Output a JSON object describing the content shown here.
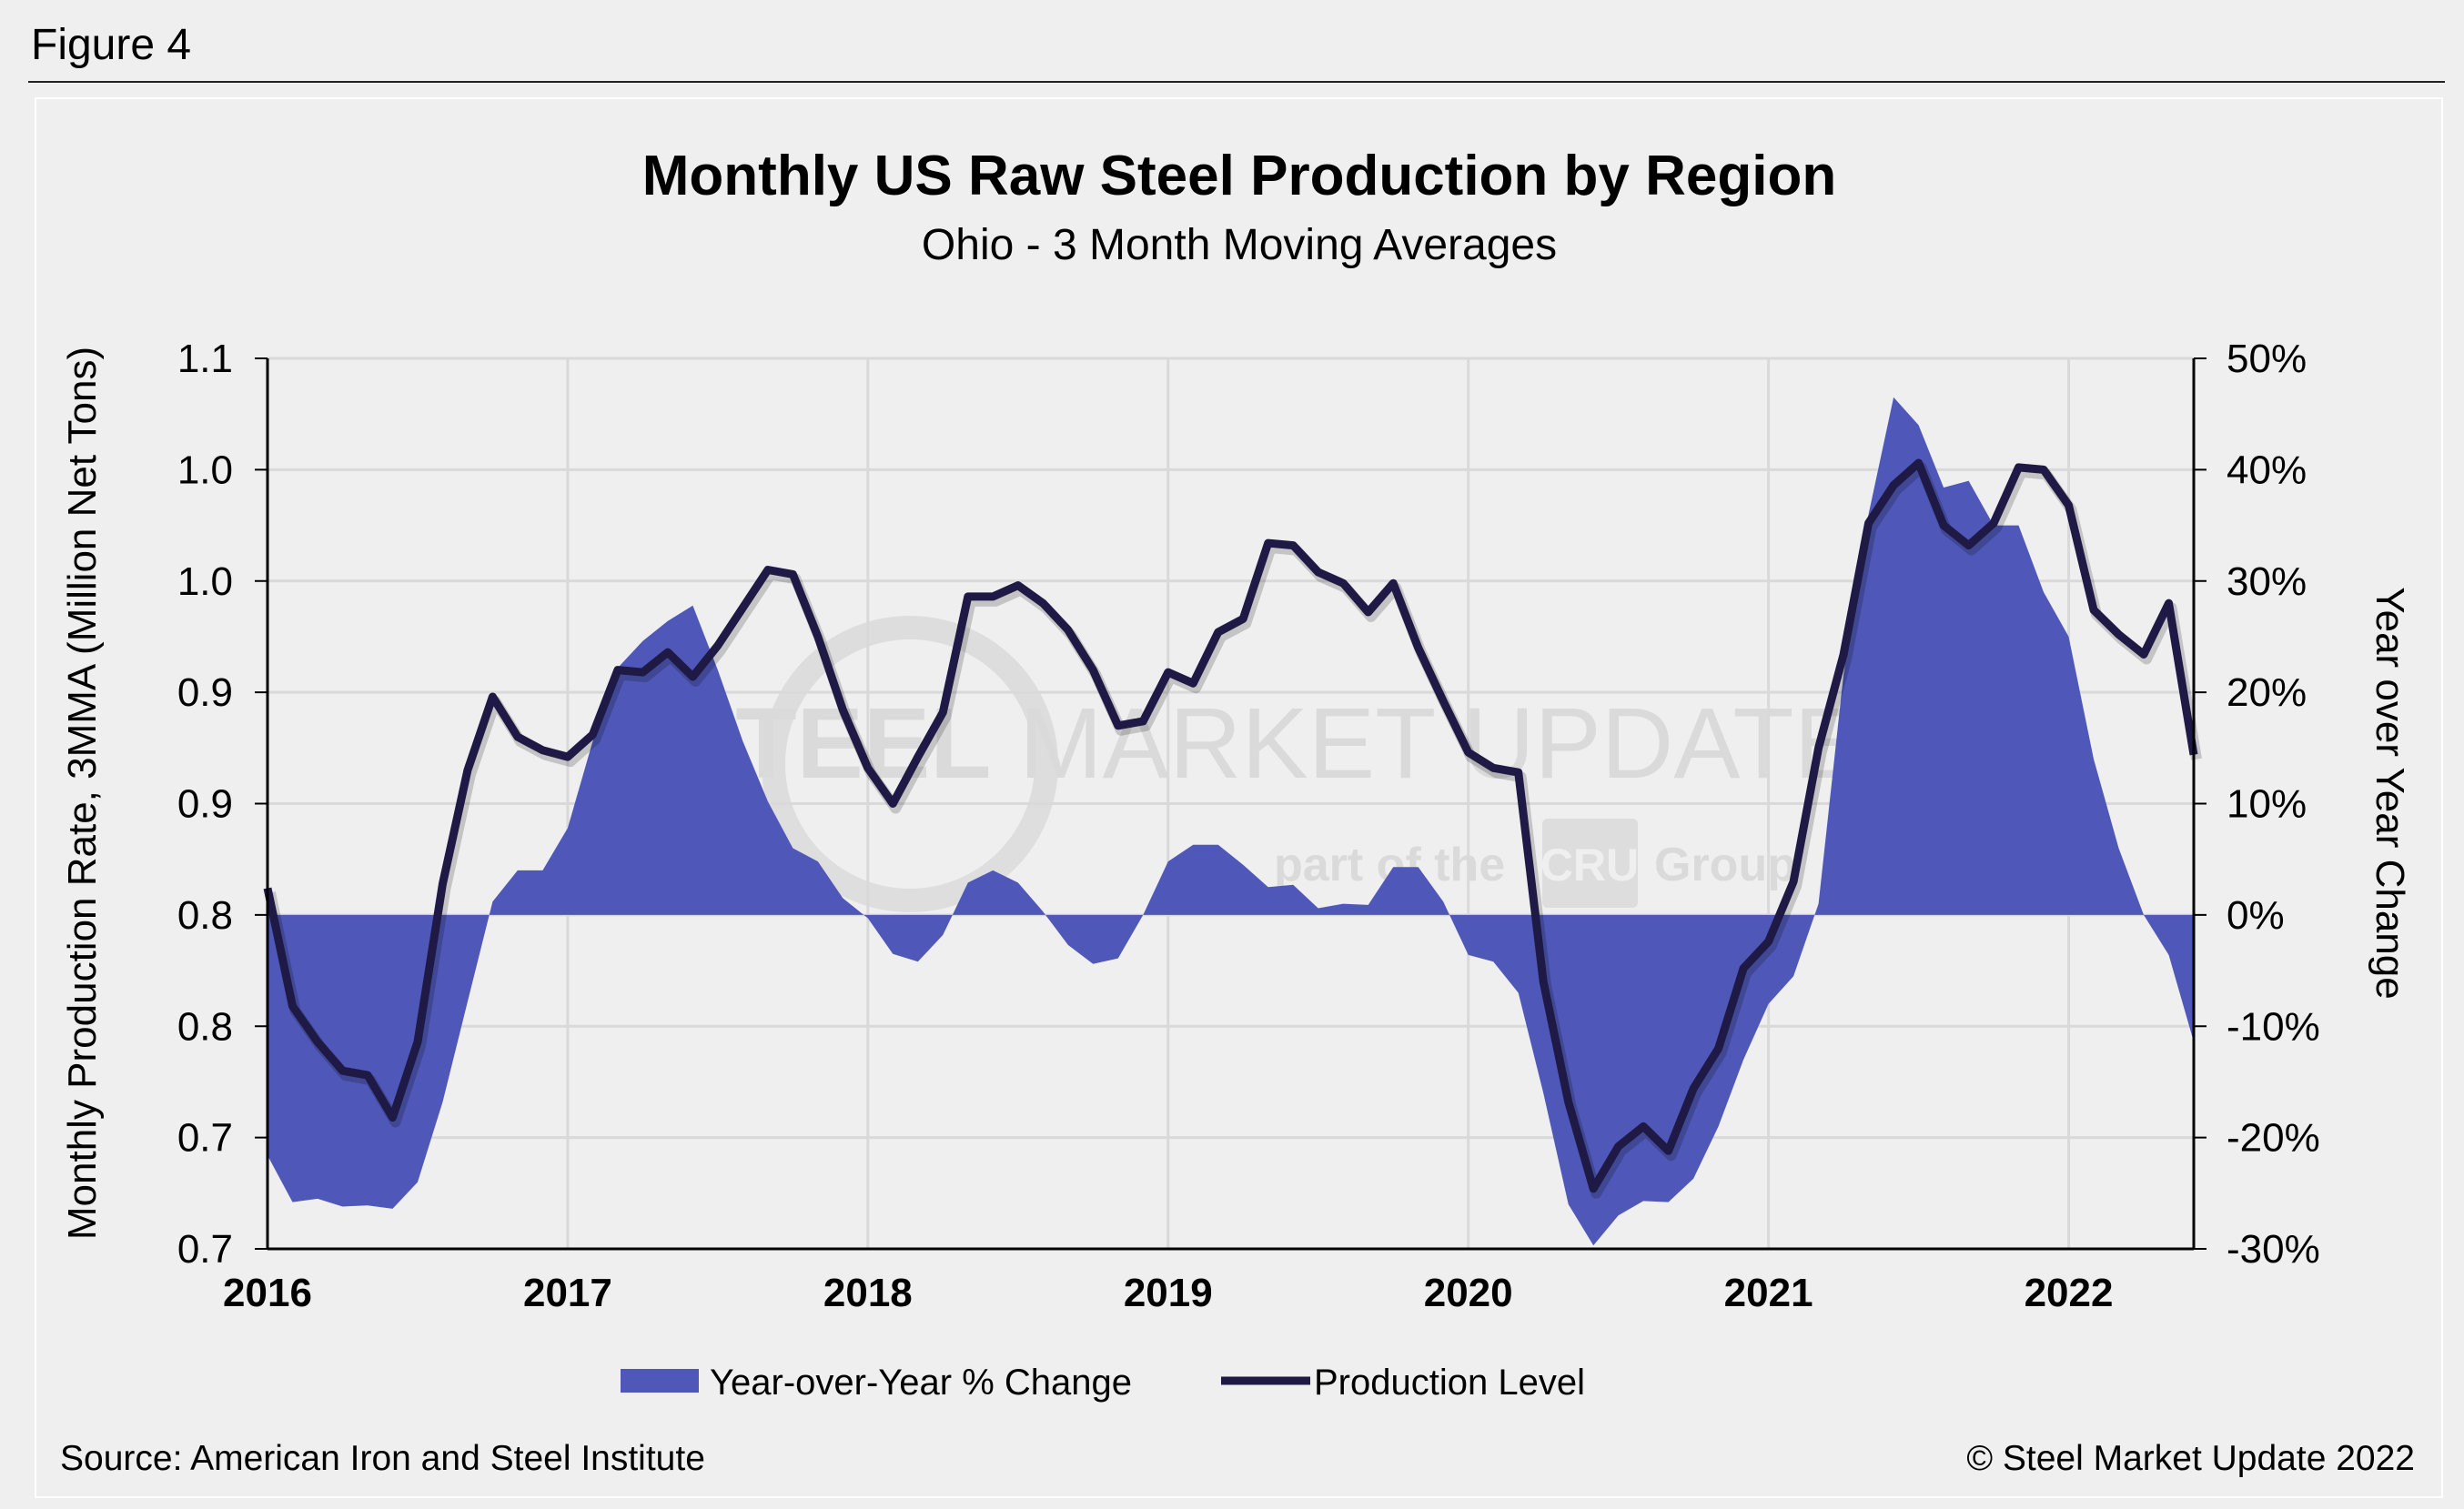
{
  "figure_label": "Figure 4",
  "watermark": {
    "line1_bold": "STEEL",
    "line1_rest": "MARKET UPDATE",
    "line2_prefix": "part of the",
    "line2_logo": "CRU",
    "line2_suffix": "Group"
  },
  "footer": {
    "source": "Source: American Iron and Steel Institute",
    "copyright": "© Steel Market Update 2022"
  },
  "colors": {
    "area": "#4f58b8",
    "line": "#1e1a45",
    "grid": "#d9d9d9",
    "background": "#efefef"
  },
  "chart_data": {
    "type": "area+line",
    "title": "Monthly US Raw Steel Production by Region",
    "subtitle": "Ohio - 3 Month Moving Averages",
    "ylabel": "Monthly Production Rate, 3MMA (Million Net Tons)",
    "ylabel_right": "Year over Year Change",
    "ylim": [
      0.65,
      1.05
    ],
    "ylim_right": [
      -30,
      50
    ],
    "y_ticks": [
      {
        "value": 1.05,
        "label": "1.1"
      },
      {
        "value": 1.0,
        "label": "1.0"
      },
      {
        "value": 0.95,
        "label": "1.0"
      },
      {
        "value": 0.9,
        "label": "0.9"
      },
      {
        "value": 0.85,
        "label": "0.9"
      },
      {
        "value": 0.8,
        "label": "0.8"
      },
      {
        "value": 0.75,
        "label": "0.8"
      },
      {
        "value": 0.7,
        "label": "0.7"
      },
      {
        "value": 0.65,
        "label": "0.7"
      }
    ],
    "y_right_ticks": [
      {
        "value": 50,
        "label": "50%"
      },
      {
        "value": 40,
        "label": "40%"
      },
      {
        "value": 30,
        "label": "30%"
      },
      {
        "value": 20,
        "label": "20%"
      },
      {
        "value": 10,
        "label": "10%"
      },
      {
        "value": 0,
        "label": "0%"
      },
      {
        "value": -10,
        "label": "-10%"
      },
      {
        "value": -20,
        "label": "-20%"
      },
      {
        "value": -30,
        "label": "-30%"
      }
    ],
    "x_ticks": [
      "2016",
      "2017",
      "2018",
      "2019",
      "2020",
      "2021",
      "2022"
    ],
    "grid": true,
    "legend_position": "bottom",
    "x": [
      "2016-01",
      "2016-02",
      "2016-03",
      "2016-04",
      "2016-05",
      "2016-06",
      "2016-07",
      "2016-08",
      "2016-09",
      "2016-10",
      "2016-11",
      "2016-12",
      "2017-01",
      "2017-02",
      "2017-03",
      "2017-04",
      "2017-05",
      "2017-06",
      "2017-07",
      "2017-08",
      "2017-09",
      "2017-10",
      "2017-11",
      "2017-12",
      "2018-01",
      "2018-02",
      "2018-03",
      "2018-04",
      "2018-05",
      "2018-06",
      "2018-07",
      "2018-08",
      "2018-09",
      "2018-10",
      "2018-11",
      "2018-12",
      "2019-01",
      "2019-02",
      "2019-03",
      "2019-04",
      "2019-05",
      "2019-06",
      "2019-07",
      "2019-08",
      "2019-09",
      "2019-10",
      "2019-11",
      "2019-12",
      "2020-01",
      "2020-02",
      "2020-03",
      "2020-04",
      "2020-05",
      "2020-06",
      "2020-07",
      "2020-08",
      "2020-09",
      "2020-10",
      "2020-11",
      "2020-12",
      "2021-01",
      "2021-02",
      "2021-03",
      "2021-04",
      "2021-05",
      "2021-06",
      "2021-07",
      "2021-08",
      "2021-09",
      "2021-10",
      "2021-11",
      "2021-12",
      "2022-01",
      "2022-02",
      "2022-03",
      "2022-04",
      "2022-05",
      "2022-06"
    ],
    "series": [
      {
        "name": "Year-over-Year % Change",
        "type": "area",
        "axis": "right",
        "values": [
          -21.6,
          -25.8,
          -25.5,
          -26.2,
          -26.1,
          -26.4,
          -24.0,
          -16.8,
          -7.8,
          1.2,
          4.0,
          4.0,
          7.8,
          15.6,
          22.2,
          24.6,
          26.4,
          27.8,
          22.0,
          15.6,
          10.2,
          6.0,
          4.8,
          1.5,
          -0.3,
          -3.5,
          -4.2,
          -1.8,
          2.9,
          4.0,
          2.9,
          0.3,
          -2.7,
          -4.4,
          -3.9,
          0.0,
          4.8,
          6.3,
          6.3,
          4.5,
          2.5,
          2.7,
          0.6,
          1.0,
          0.9,
          4.3,
          4.3,
          1.2,
          -3.6,
          -4.2,
          -7.0,
          -16.0,
          -26.0,
          -29.7,
          -27.0,
          -25.7,
          -25.8,
          -23.7,
          -19.0,
          -13.0,
          -8.0,
          -5.5,
          1.0,
          21.6,
          36.0,
          46.5,
          44.0,
          38.4,
          39.0,
          35.0,
          35.0,
          29.0,
          25.0,
          14.0,
          6.0,
          0.0,
          -3.6,
          -11.4
        ]
      },
      {
        "name": "Production Level",
        "type": "line",
        "axis": "left",
        "values": [
          0.812,
          0.759,
          0.743,
          0.73,
          0.728,
          0.709,
          0.743,
          0.814,
          0.865,
          0.898,
          0.88,
          0.874,
          0.871,
          0.881,
          0.91,
          0.909,
          0.918,
          0.907,
          0.921,
          0.938,
          0.955,
          0.953,
          0.925,
          0.892,
          0.866,
          0.85,
          0.871,
          0.891,
          0.943,
          0.943,
          0.948,
          0.94,
          0.928,
          0.91,
          0.885,
          0.887,
          0.909,
          0.904,
          0.927,
          0.933,
          0.967,
          0.966,
          0.954,
          0.949,
          0.936,
          0.949,
          0.92,
          0.896,
          0.873,
          0.866,
          0.864,
          0.77,
          0.716,
          0.677,
          0.696,
          0.705,
          0.694,
          0.722,
          0.74,
          0.776,
          0.788,
          0.815,
          0.875,
          0.917,
          0.976,
          0.993,
          1.003,
          0.975,
          0.966,
          0.976,
          1.001,
          1.0,
          0.984,
          0.937,
          0.926,
          0.917,
          0.94,
          0.872
        ]
      }
    ]
  }
}
